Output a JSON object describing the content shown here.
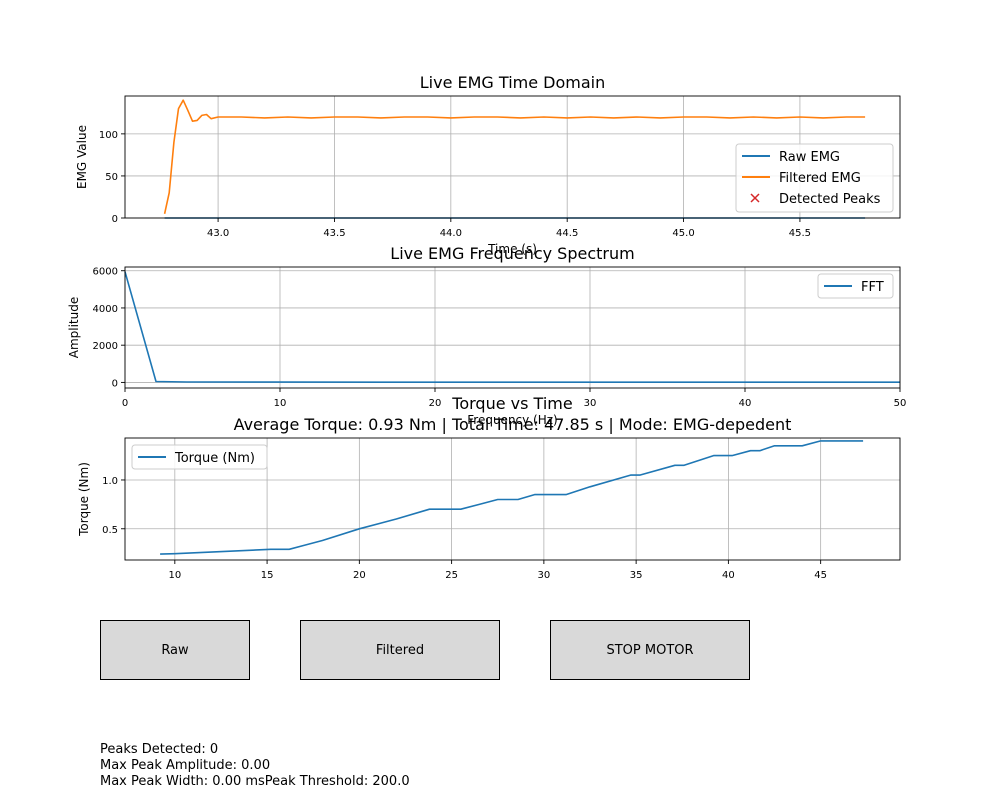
{
  "chart_data": [
    {
      "type": "line",
      "title": "Live EMG Time Domain",
      "xlabel": "Time (s)",
      "ylabel": "EMG Value",
      "xlim": [
        42.6,
        45.93
      ],
      "ylim": [
        0,
        145
      ],
      "xticks": [
        43.0,
        43.5,
        44.0,
        44.5,
        45.0,
        45.5
      ],
      "xtick_labels": [
        "43.0",
        "43.5",
        "44.0",
        "44.5",
        "45.0",
        "45.5"
      ],
      "yticks": [
        0,
        50,
        100
      ],
      "ytick_labels": [
        "0",
        "50",
        "100"
      ],
      "grid": true,
      "legend_position": "lower-right",
      "legend": [
        "Raw EMG",
        "Filtered EMG",
        "Detected Peaks"
      ],
      "series": [
        {
          "name": "Raw EMG",
          "color": "#1f77b4",
          "x": [
            42.77,
            45.78
          ],
          "y": [
            0,
            0
          ]
        },
        {
          "name": "Filtered EMG",
          "color": "#ff7f0e",
          "x": [
            42.77,
            42.79,
            42.81,
            42.83,
            42.85,
            42.87,
            42.89,
            42.91,
            42.93,
            42.95,
            42.97,
            43.0,
            43.1,
            43.2,
            43.3,
            43.4,
            43.5,
            43.6,
            43.7,
            43.8,
            43.9,
            44.0,
            44.1,
            44.2,
            44.3,
            44.4,
            44.5,
            44.6,
            44.7,
            44.8,
            44.9,
            45.0,
            45.1,
            45.2,
            45.3,
            45.4,
            45.5,
            45.6,
            45.7,
            45.78
          ],
          "y": [
            5,
            30,
            90,
            130,
            140,
            128,
            115,
            116,
            122,
            123,
            118,
            120,
            120,
            119,
            120,
            119,
            120,
            120,
            119,
            120,
            120,
            119,
            120,
            120,
            119,
            120,
            119,
            120,
            119,
            120,
            119,
            120,
            120,
            119,
            120,
            119,
            120,
            119,
            120,
            120
          ]
        },
        {
          "name": "Detected Peaks",
          "color": "#d62728",
          "marker": "x",
          "x": [],
          "y": []
        }
      ]
    },
    {
      "type": "line",
      "title": "Live EMG Frequency Spectrum",
      "xlabel": "Frequency (Hz)",
      "ylabel": "Amplitude",
      "xlim": [
        0,
        50
      ],
      "ylim": [
        -300,
        6200
      ],
      "xticks": [
        0,
        10,
        20,
        30,
        40,
        50
      ],
      "xtick_labels": [
        "0",
        "10",
        "20",
        "30",
        "40",
        "50"
      ],
      "yticks": [
        0,
        2000,
        4000,
        6000
      ],
      "ytick_labels": [
        "0",
        "2000",
        "4000",
        "6000"
      ],
      "grid": true,
      "legend_position": "upper-right",
      "legend": [
        "FFT"
      ],
      "series": [
        {
          "name": "FFT",
          "color": "#1f77b4",
          "x": [
            0,
            2,
            4,
            10,
            20,
            30,
            40,
            50
          ],
          "y": [
            5950,
            50,
            20,
            15,
            12,
            10,
            10,
            10
          ]
        }
      ]
    },
    {
      "type": "line",
      "title": "Torque vs Time",
      "subtitle": "Average Torque: 0.93 Nm | Total Time: 47.85 s | Mode: EMG-depedent",
      "xlabel": "",
      "ylabel": "Torque (Nm)",
      "xlim": [
        7.3,
        49.3
      ],
      "ylim": [
        0.18,
        1.43
      ],
      "xticks": [
        10,
        15,
        20,
        25,
        30,
        35,
        40,
        45
      ],
      "xtick_labels": [
        "10",
        "15",
        "20",
        "25",
        "30",
        "35",
        "40",
        "45"
      ],
      "yticks": [
        0.5,
        1.0
      ],
      "ytick_labels": [
        "0.5",
        "1.0"
      ],
      "grid": true,
      "legend_position": "upper-left",
      "legend": [
        "Torque (Nm)"
      ],
      "series": [
        {
          "name": "Torque (Nm)",
          "color": "#1f77b4",
          "x": [
            9.2,
            10.0,
            13.0,
            15.2,
            16.2,
            17.0,
            18.0,
            20.0,
            22.0,
            23.8,
            25.5,
            26.5,
            27.5,
            28.6,
            29.5,
            31.2,
            32.5,
            34.7,
            35.2,
            37.1,
            37.6,
            39.2,
            40.2,
            41.2,
            41.7,
            42.5,
            44.0,
            45.0,
            47.3
          ],
          "y": [
            0.24,
            0.245,
            0.27,
            0.29,
            0.29,
            0.33,
            0.38,
            0.5,
            0.6,
            0.7,
            0.7,
            0.75,
            0.8,
            0.8,
            0.85,
            0.85,
            0.93,
            1.05,
            1.05,
            1.15,
            1.15,
            1.25,
            1.25,
            1.3,
            1.3,
            1.35,
            1.35,
            1.4,
            1.4
          ]
        }
      ]
    }
  ],
  "controls": {
    "raw_label": "Raw",
    "filtered_label": "Filtered",
    "stop_label": "STOP MOTOR"
  },
  "status": {
    "line1": "Peaks Detected: 0",
    "line2": "Max Peak Amplitude: 0.00",
    "line3": "Max Peak Width: 0.00 msPeak Threshold: 200.0"
  },
  "colors": {
    "button_bg": "#d9d9d9",
    "grid": "#b0b0b0",
    "series_blue": "#1f77b4",
    "series_orange": "#ff7f0e",
    "peaks_red": "#d62728"
  }
}
